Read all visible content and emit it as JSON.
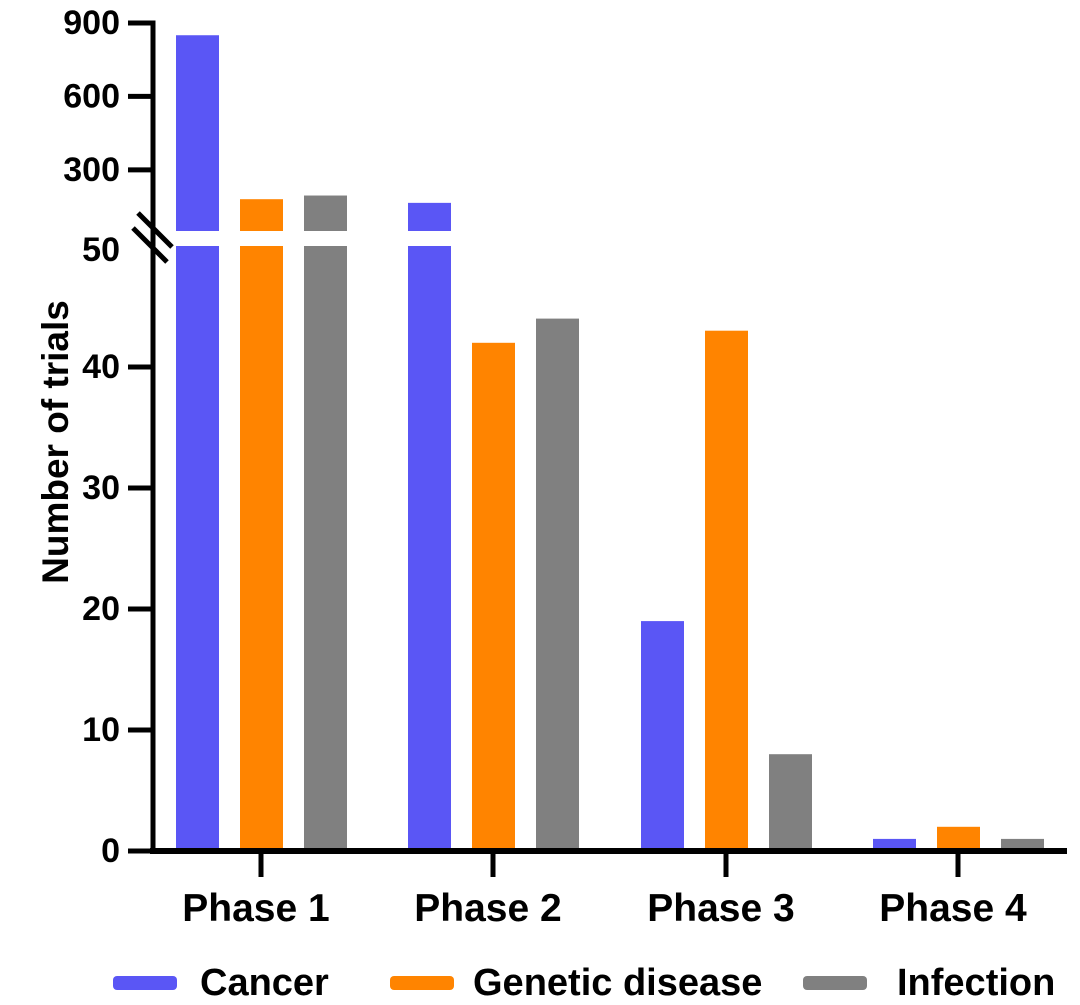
{
  "chart": {
    "y_axis_label": "Number of trials",
    "background": "#ffffff",
    "axis_color": "#000000",
    "text_color": "#000000"
  },
  "chart_data": {
    "type": "bar",
    "title": "",
    "xlabel": "",
    "ylabel": "Number of trials",
    "categories": [
      "Phase 1",
      "Phase 2",
      "Phase 3",
      "Phase 4"
    ],
    "series": [
      {
        "name": "Cancer",
        "color": "#5A56F5",
        "values": [
          850,
          165,
          19,
          1
        ]
      },
      {
        "name": "Genetic disease",
        "color": "#FF8400",
        "values": [
          180,
          42,
          43,
          2
        ]
      },
      {
        "name": "Infection",
        "color": "#808080",
        "values": [
          195,
          44,
          8,
          1
        ]
      }
    ],
    "axis_break": {
      "lower_range": [
        0,
        50
      ],
      "upper_range": [
        50,
        900
      ],
      "break_marker": "double-slash"
    },
    "y_ticks_lower": [
      0,
      10,
      20,
      30,
      40
    ],
    "y_tick_break_label": 50,
    "y_ticks_upper": [
      300,
      600,
      900
    ],
    "grid": false,
    "legend_position": "bottom"
  }
}
